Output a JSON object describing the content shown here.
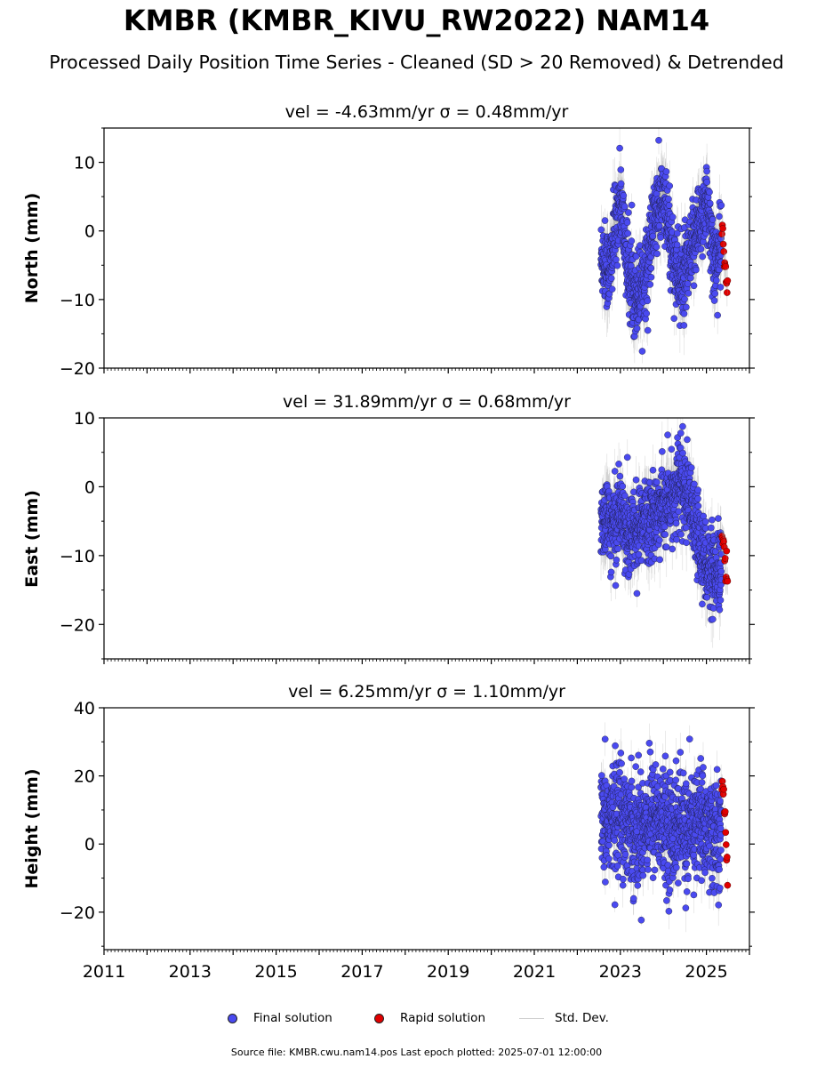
{
  "title": "KMBR (KMBR_KIVU_RW2022) NAM14",
  "subtitle": "Processed Daily Position Time Series - Cleaned (SD > 20 Removed) & Detrended",
  "legend": {
    "final": "Final solution",
    "rapid": "Rapid solution",
    "std": "Std. Dev."
  },
  "footer": "Source file: KMBR.cwu.nam14.pos  Last epoch plotted: 2025-07-01 12:00:00",
  "colors": {
    "final": "#4a4af0",
    "rapid": "#e00000",
    "std": "#9a9a9a"
  },
  "chart_data": [
    {
      "type": "scatter",
      "title": "vel = -4.63mm/yr   σ = 0.48mm/yr",
      "ylabel": "North (mm)",
      "xlim": [
        2011,
        2026
      ],
      "ylim": [
        -20,
        15
      ],
      "yticks": [
        -20,
        -10,
        0,
        10
      ],
      "ytick_labels": [
        "−20",
        "−10",
        "0",
        "10"
      ],
      "data_start": 2022.55,
      "final_end": 2025.35,
      "rapid_start": 2025.36,
      "rapid_end": 2025.5,
      "series": [
        {
          "name": "Final solution",
          "x": [
            2022.6,
            2022.75,
            2022.9,
            2023.0,
            2023.2,
            2023.4,
            2023.6,
            2023.8,
            2024.0,
            2024.2,
            2024.4,
            2024.6,
            2024.8,
            2025.0,
            2025.2,
            2025.35
          ],
          "y": [
            -4,
            -6,
            1,
            5,
            -7,
            -9,
            -6,
            2,
            5,
            -3,
            -8,
            -5,
            1,
            4,
            -5,
            -2
          ]
        },
        {
          "name": "Rapid solution",
          "x": [
            2025.38,
            2025.42,
            2025.46,
            2025.5
          ],
          "y": [
            -1,
            -4,
            -7,
            -9
          ]
        }
      ]
    },
    {
      "type": "scatter",
      "title": "vel = 31.89mm/yr   σ = 0.68mm/yr",
      "ylabel": "East (mm)",
      "xlim": [
        2011,
        2026
      ],
      "ylim": [
        -25,
        10
      ],
      "yticks": [
        -20,
        -10,
        0,
        10
      ],
      "ytick_labels": [
        "−20",
        "−10",
        "0",
        "10"
      ],
      "data_start": 2022.55,
      "final_end": 2025.35,
      "rapid_start": 2025.36,
      "rapid_end": 2025.5,
      "series": [
        {
          "name": "Final solution",
          "x": [
            2022.6,
            2022.8,
            2023.0,
            2023.2,
            2023.4,
            2023.6,
            2023.8,
            2024.0,
            2024.2,
            2024.4,
            2024.6,
            2024.8,
            2025.0,
            2025.2,
            2025.35
          ],
          "y": [
            -4,
            -6,
            -3,
            -7,
            -6,
            -5,
            -4,
            -3,
            -2,
            1,
            -3,
            -7,
            -11,
            -14,
            -12
          ]
        },
        {
          "name": "Rapid solution",
          "x": [
            2025.38,
            2025.42,
            2025.46,
            2025.5
          ],
          "y": [
            -8,
            -10,
            -12,
            -14
          ]
        }
      ]
    },
    {
      "type": "scatter",
      "title": "vel = 6.25mm/yr   σ = 1.10mm/yr",
      "ylabel": "Height (mm)",
      "xlim": [
        2011,
        2026
      ],
      "ylim": [
        -31,
        40
      ],
      "yticks": [
        -20,
        0,
        20,
        40
      ],
      "ytick_labels": [
        "−20",
        "0",
        "20",
        "40"
      ],
      "xticks": [
        2011,
        2013,
        2015,
        2017,
        2019,
        2021,
        2023,
        2025
      ],
      "xtick_labels": [
        "2011",
        "2013",
        "2015",
        "2017",
        "2019",
        "2021",
        "2023",
        "2025"
      ],
      "data_start": 2022.55,
      "final_end": 2025.35,
      "rapid_start": 2025.36,
      "rapid_end": 2025.5,
      "series": [
        {
          "name": "Final solution",
          "x": [
            2022.6,
            2022.8,
            2023.0,
            2023.2,
            2023.4,
            2023.6,
            2023.8,
            2024.0,
            2024.2,
            2024.4,
            2024.6,
            2024.8,
            2025.0,
            2025.2,
            2025.35
          ],
          "y": [
            5,
            8,
            10,
            6,
            3,
            7,
            9,
            5,
            4,
            6,
            2,
            8,
            5,
            3,
            0
          ]
        },
        {
          "name": "Rapid solution",
          "x": [
            2025.38,
            2025.42,
            2025.46,
            2025.5
          ],
          "y": [
            20,
            10,
            3,
            -15
          ]
        }
      ]
    }
  ]
}
